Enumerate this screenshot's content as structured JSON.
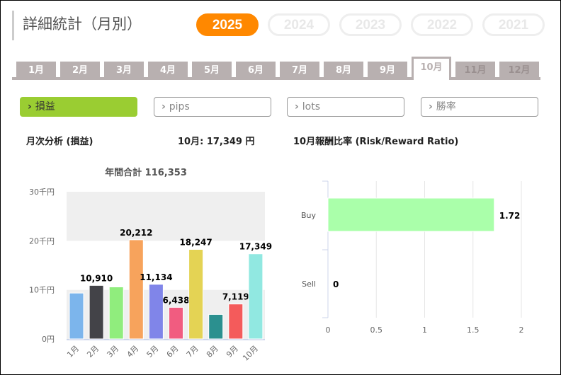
{
  "header": {
    "title": "詳細統計（月別）"
  },
  "years": [
    {
      "label": "2025",
      "active": true
    },
    {
      "label": "2024"
    },
    {
      "label": "2023"
    },
    {
      "label": "2022"
    },
    {
      "label": "2021"
    }
  ],
  "months": [
    "1月",
    "2月",
    "3月",
    "4月",
    "5月",
    "6月",
    "7月",
    "8月",
    "9月",
    "10月",
    "11月",
    "12月"
  ],
  "active_month": "10月",
  "metrics": [
    {
      "label": "損益",
      "active": true
    },
    {
      "label": "pips"
    },
    {
      "label": "lots"
    },
    {
      "label": "勝率"
    }
  ],
  "arrow": "›",
  "left": {
    "title": "月次分析 (損益)",
    "current": "10月:  17,349 円"
  },
  "right": {
    "title": "10月報酬比率 (Risk/Reward Ratio)"
  },
  "colors": {
    "accent": "#ff8800",
    "metric_active": "#9acd32",
    "tab": "#b8b0b0"
  },
  "chart_data": [
    {
      "type": "bar",
      "title": "年間合計 116,353",
      "xlabel": "",
      "ylabel": "",
      "ylim": [
        0,
        30000
      ],
      "yticks": [
        "0円",
        "10千円",
        "20千円",
        "30千円"
      ],
      "categories": [
        "1月",
        "2月",
        "3月",
        "4月",
        "5月",
        "6月",
        "7月",
        "8月",
        "9月",
        "10月"
      ],
      "values": [
        9350,
        10910,
        10600,
        20212,
        11134,
        6438,
        18247,
        4994,
        7119,
        17349
      ],
      "data_labels": [
        "",
        "10,910",
        "",
        "20,212",
        "11,134",
        "6,438",
        "18,247",
        "",
        "7,119",
        "17,349"
      ],
      "colors": [
        "#7cb5ec",
        "#434348",
        "#90ed7d",
        "#f7a35c",
        "#8085e9",
        "#f15c80",
        "#e4d354",
        "#2b908f",
        "#f45b5b",
        "#91e8e1"
      ]
    },
    {
      "type": "bar",
      "orientation": "horizontal",
      "categories": [
        "Buy",
        "Sell"
      ],
      "values": [
        1.72,
        0
      ],
      "data_labels": [
        "1.72",
        "0"
      ],
      "xlim": [
        0,
        2
      ],
      "xticks": [
        "0",
        "0.5",
        "1",
        "1.5",
        "2"
      ],
      "color": "#aaffaa"
    }
  ]
}
